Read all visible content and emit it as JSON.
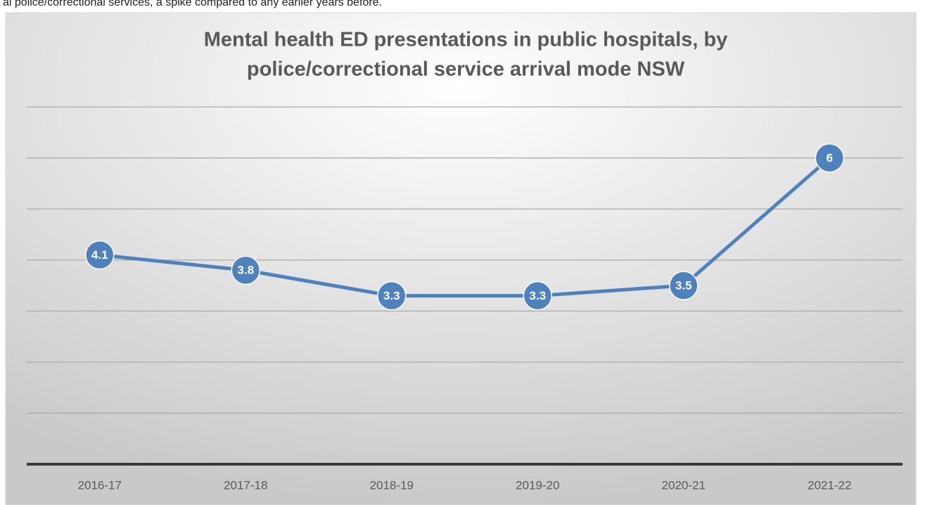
{
  "caption": "al police/correctional services, a spike compared to any earlier years before.",
  "chart_data": {
    "type": "line",
    "title": [
      "Mental health ED presentations in public hospitals, by",
      "police/correctional service arrival mode NSW"
    ],
    "categories": [
      "2016-17",
      "2017-18",
      "2018-19",
      "2019-20",
      "2020-21",
      "2021-22"
    ],
    "series": [
      {
        "name": "Mental health ED presentations",
        "color": "#4f81bd",
        "values": [
          4.1,
          3.8,
          3.3,
          3.3,
          3.5,
          6
        ]
      }
    ],
    "ylim": [
      0,
      7
    ],
    "yticks": [
      0,
      1,
      2,
      3,
      4,
      5,
      6,
      7
    ],
    "grid": true,
    "data_labels": true
  }
}
